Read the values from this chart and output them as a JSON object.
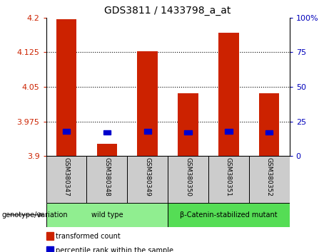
{
  "title": "GDS3811 / 1433798_a_at",
  "samples": [
    "GSM380347",
    "GSM380348",
    "GSM380349",
    "GSM380350",
    "GSM380351",
    "GSM380352"
  ],
  "transformed_count": [
    4.197,
    3.927,
    4.127,
    4.037,
    4.167,
    4.037
  ],
  "percentile_rank": [
    18,
    17,
    18,
    17,
    18,
    17
  ],
  "y_min": 3.9,
  "y_max": 4.2,
  "y_ticks": [
    3.9,
    3.975,
    4.05,
    4.125,
    4.2
  ],
  "y_tick_labels": [
    "3.9",
    "3.975",
    "4.05",
    "4.125",
    "4.2"
  ],
  "right_y_ticks": [
    0,
    25,
    50,
    75,
    100
  ],
  "right_y_tick_labels": [
    "0",
    "25",
    "50",
    "75",
    "100%"
  ],
  "groups": [
    {
      "label": "wild type",
      "indices": [
        0,
        1,
        2
      ],
      "color": "#90EE90"
    },
    {
      "label": "β-Catenin-stabilized mutant",
      "indices": [
        3,
        4,
        5
      ],
      "color": "#55DD55"
    }
  ],
  "genotype_label": "genotype/variation",
  "bar_color": "#CC2200",
  "percentile_color": "#0000CC",
  "bar_width": 0.5,
  "background_color": "#FFFFFF",
  "plot_bg_color": "#FFFFFF",
  "tick_color_left": "#CC2200",
  "tick_color_right": "#0000BB",
  "legend_items": [
    {
      "label": "transformed count",
      "color": "#CC2200"
    },
    {
      "label": "percentile rank within the sample",
      "color": "#0000CC"
    }
  ],
  "sample_bg_color": "#CCCCCC"
}
